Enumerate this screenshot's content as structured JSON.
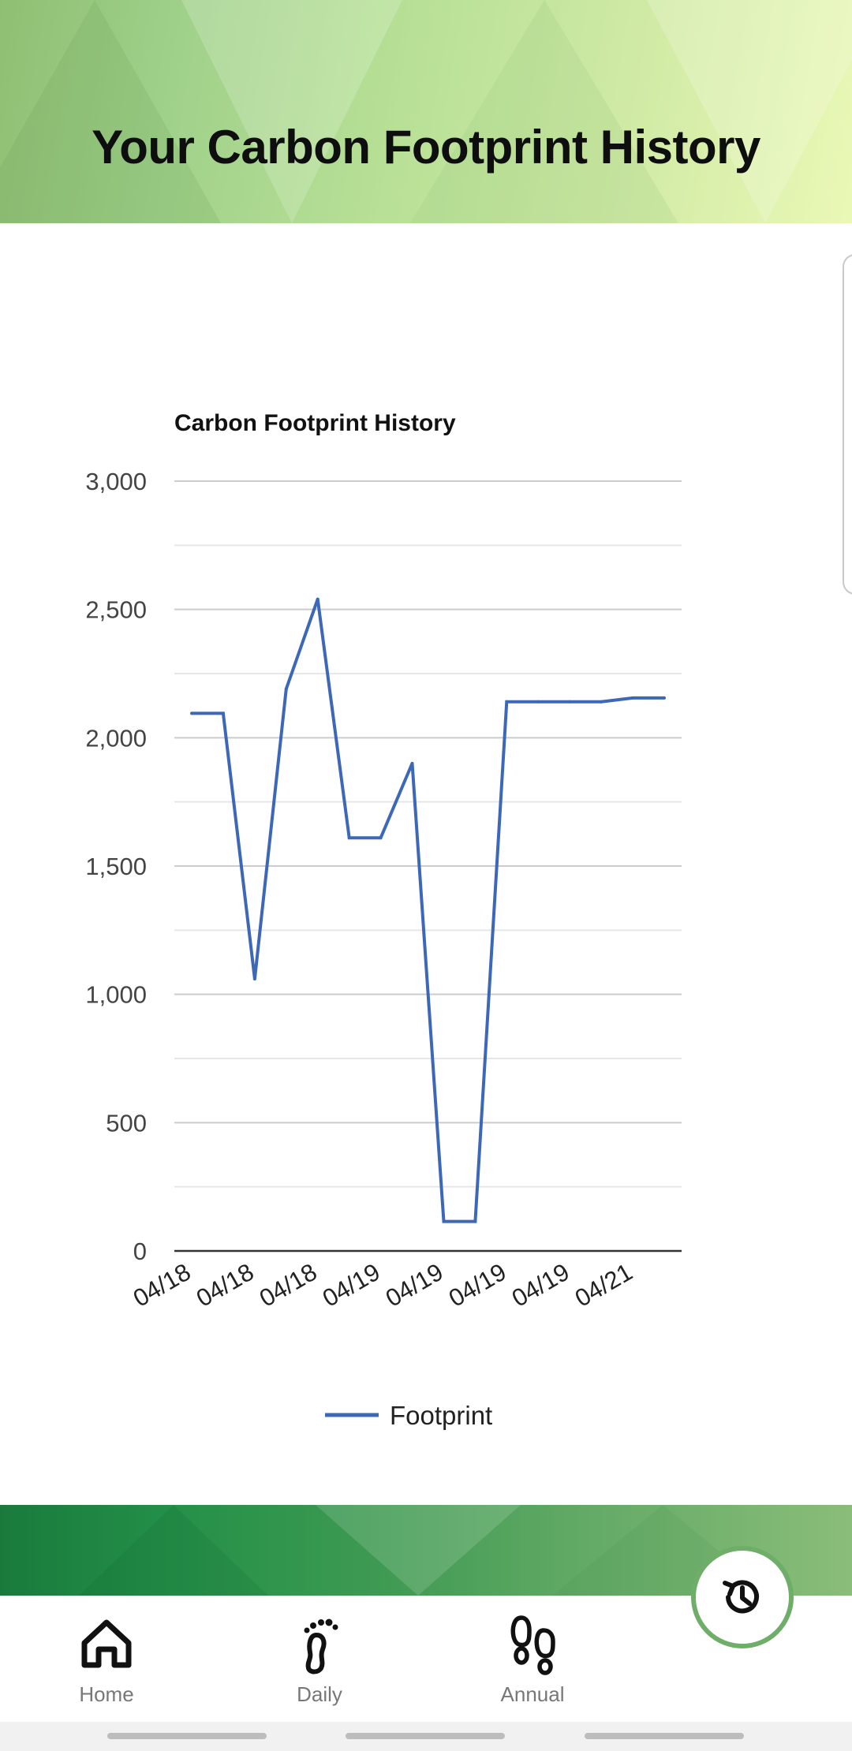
{
  "header": {
    "title": "Your Carbon Footprint History"
  },
  "chart_data": {
    "type": "line",
    "title": "Carbon Footprint History",
    "xlabel": "",
    "ylabel": "",
    "ylim": [
      0,
      3000
    ],
    "yticks": [
      "0",
      "500",
      "1,000",
      "1,500",
      "2,000",
      "2,500",
      "3,000"
    ],
    "ytick_values": [
      0,
      500,
      1000,
      1500,
      2000,
      2500,
      3000
    ],
    "xtick_labels": [
      "04/18",
      "04/18",
      "04/18",
      "04/19",
      "04/19",
      "04/19",
      "04/19",
      "04/21"
    ],
    "grid": true,
    "legend_position": "bottom",
    "series": [
      {
        "name": "Footprint",
        "color": "#3d68b8",
        "values": [
          2095,
          2095,
          1060,
          2190,
          2540,
          1610,
          1610,
          1900,
          115,
          115,
          2140,
          2140,
          2140,
          2140,
          2155,
          2155
        ]
      }
    ]
  },
  "nav": {
    "items": [
      {
        "label": "Home",
        "icon": "home-icon"
      },
      {
        "label": "Daily",
        "icon": "footprint-icon"
      },
      {
        "label": "Annual",
        "icon": "footsteps-icon"
      }
    ],
    "fab_icon": "history-icon",
    "accent_color": "#6fae68"
  }
}
